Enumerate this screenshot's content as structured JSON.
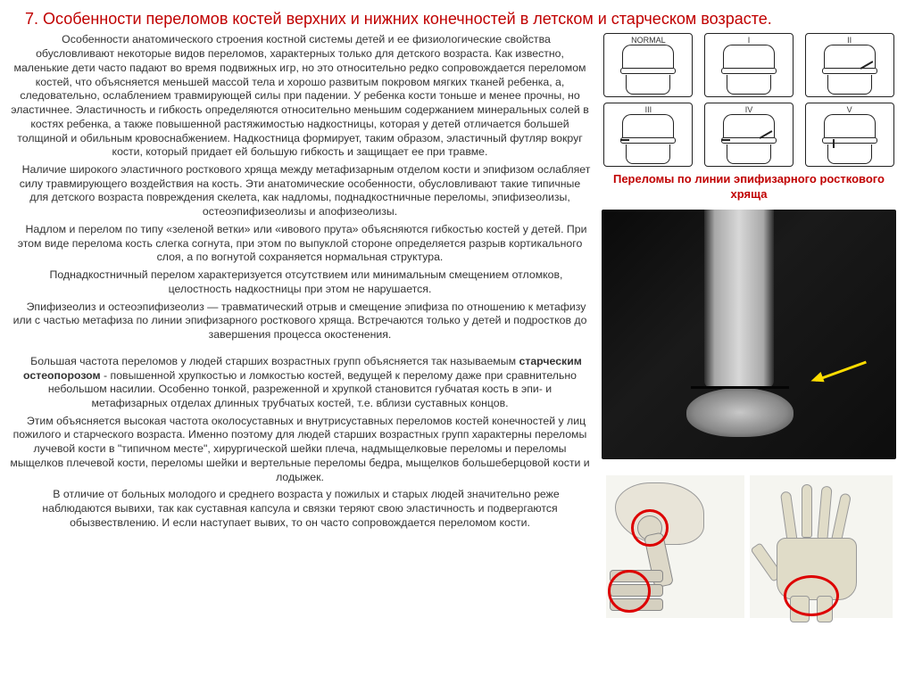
{
  "title": "7. Особенности переломов костей верхних и нижних  конечностей в летском и старческом возрасте.",
  "paragraphs": {
    "p1": "Особенности анатомического строения костной системы детей и ее физиологические свойства обусловливают некоторые видов переломов, характерных только для детского возраста. Как известно, маленькие дети часто падают во время подвижных игр, но это относительно редко сопровождается переломом костей, что объясняется меньшей массой тела и хорошо развитым покровом мягких тканей ребенка, а, следовательно, ослаблением травмирующей силы при падении. У ребенка кости тоньше и менее прочны, но эластичнее. Эластичность и гибкость определяются относительно меньшим содержанием минеральных солей в костях ребенка, а также повышенной растяжимостью надкостницы, которая у детей отличается большей толщиной и обильным кровоснабжением. Надкостница формирует, таким образом, эластичный футляр вокруг кости, который придает ей большую гибкость и защищает ее при травме.",
    "p2": "Наличие широкого эластичного росткового хряща между метафизарным отделом кости и эпифизом ослабляет силу травмирующего воздействия на кость. Эти анатомические особенности, обусловливают такие типичные для детского возраста повреждения скелета, как надломы, поднадкостничные переломы, эпифизеолизы, остеоэпифизеолизы и апофизеолизы.",
    "p3": "Надлом и перелом по типу «зеленой ветки» или «ивового прута» объясняются гибкостью костей у детей. При этом виде перелома кость слегка согнута, при этом по выпуклой стороне определяется разрыв кортикального слоя, а по вогнутой сохраняется нормальная структура.",
    "p4": "Поднадкостничный перелом характеризуется отсутствием или минимальным смещением отломков, целостность надкостницы при этом не нарушается.",
    "p5": "Эпифизеолиз и остеоэпифизеолиз — травматический отрыв и смещение эпифиза по отношению к метафизу или с частью метафиза по линии эпифизарного росткового хряща. Встречаются только у детей и подростков до завершения процесса окостенения.",
    "p6_part1": "Большая частота переломов у людей старших возрастных групп объясняется так называемым ",
    "p6_bold": "старческим остеопорозом",
    "p6_part2": " - повышенной хрупкостью и ломкостью костей, ведущей к перелому даже при сравнительно небольшом насилии. Особенно тонкой, разреженной и хрупкой становится губчатая кость в эпи-  и метафизарных отделах длинных трубчатых костей, т.е. вблизи суставных концов.",
    "p7": "Этим объясняется высокая частота околосуставных и внутрисуставных переломов костей конечностей у лиц пожилого и старческого возраста. Именно поэтому для людей старших возрастных групп характерны переломы лучевой кости в \"типичном месте\", хирургической шейки плеча, надмыщелковые переломы и переломы мыщелков плечевой кости, переломы шейки и вертельные переломы бедра, мыщелков большеберцовой кости и лодыжек.",
    "p8": "В отличие от больных молодого и среднего возраста у пожилых и старых людей значительно реже наблюдаются вывихи, так как суставная капсула и связки теряют свою эластичность и подвергаются обызвествлению. И если наступает вывих, то он часто сопровождается переломом кости."
  },
  "diagram_labels": {
    "normal": "NORMAL",
    "one": "I",
    "two": "II",
    "three": "III",
    "four": "IV",
    "five": "V"
  },
  "caption": "Переломы по линии эпифизарного росткового хряща",
  "colors": {
    "title": "#c00000",
    "text": "#333333",
    "caption": "#c00000",
    "arrow": "#ffdd00",
    "red_circle": "#dd0000"
  }
}
